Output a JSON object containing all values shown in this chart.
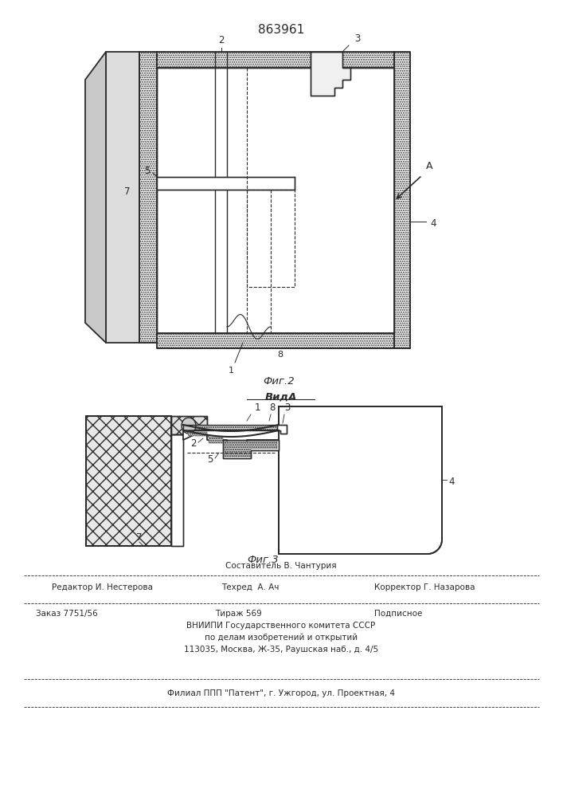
{
  "patent_number": "863961",
  "fig2_caption": "Фиг.2",
  "fig3_caption": "Фиг.3",
  "vida_label": "ВидA",
  "bg_color": "#ffffff",
  "lc": "#2a2a2a",
  "footer": {
    "sostavitel": "Составитель В. Чантурия",
    "redaktor": "Редактор И. Нестерова",
    "tekhred": "Техред  А. Ач",
    "korrektor": "Корректор Г. Назарова",
    "zakaz": "Заказ 7751/56",
    "tirazh": "Тираж 569",
    "podpisnoe": "Подписное",
    "vniiipi1": "ВНИИПИ Государственного комитета СССР",
    "vniiipi2": "по делам изобретений и открытий",
    "addr": "113035, Москва, Ж-35, Раушская наб., д. 4/5",
    "filial": "Филиал ППП \"Патент\", г. Ужгород, ул. Проектная, 4"
  }
}
